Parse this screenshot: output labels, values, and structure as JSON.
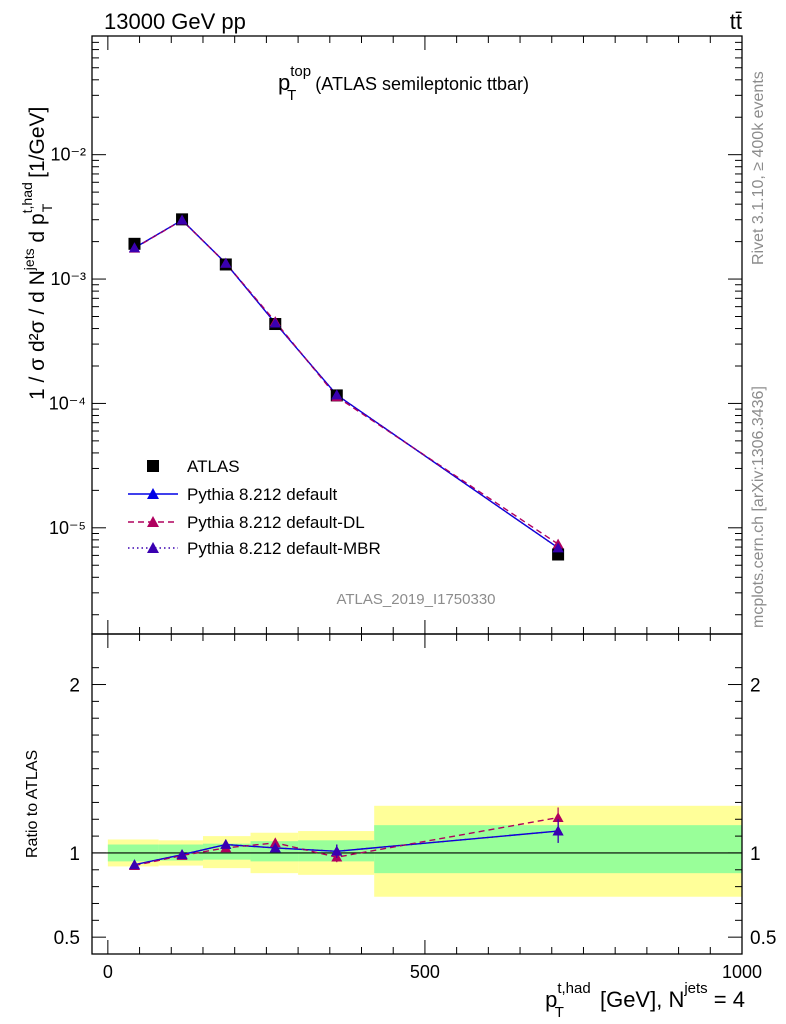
{
  "header": {
    "energy_label": "13000 GeV pp",
    "process_label": "tt̄"
  },
  "side_text": {
    "rivet_label": "Rivet 3.1.10, ≥ 400k events",
    "mcplots_label": "mcplots.cern.ch [arXiv:1306.3436]"
  },
  "plot": {
    "title_main": "p",
    "title_sup": "top",
    "title_sub": "T",
    "title_rest": " (ATLAS semileptonic ttbar)",
    "analysis_id": "ATLAS_2019_I1750330",
    "ylabel_main": "1 / σ d²σ / d N",
    "ylabel_sup1": "jets",
    "ylabel_mid": " d p",
    "ylabel_sup2": "t,had",
    "ylabel_sub2": "T",
    "ylabel_unit": " [1/GeV]",
    "ratio_ylabel": "Ratio to ATLAS",
    "xlabel_main": "p",
    "xlabel_sup": "t,had",
    "xlabel_sub": "T",
    "xlabel_rest": " [GeV], N",
    "xlabel_sup2": "jets",
    "xlabel_end": " = 4"
  },
  "legend": {
    "data_label": "ATLAS",
    "default_label": "Pythia 8.212 default",
    "dl_label": "Pythia 8.212 default-DL",
    "mbr_label": "Pythia 8.212 default-MBR"
  },
  "colors": {
    "data": "#000000",
    "default": "#0000e6",
    "dl": "#b0005f",
    "mbr": "#3a00b0",
    "band_inner": "#99ff99",
    "band_outer": "#ffff99"
  },
  "chart_data": {
    "type": "line",
    "title": "pT top (ATLAS semileptonic ttbar)",
    "xlabel": "pT t,had [GeV], N jets = 4",
    "ylabel": "1 / sigma d2sigma / d N jets d pT t,had [1/GeV]",
    "xlim": [
      -25,
      1000
    ],
    "ylim": [
      1.4e-06,
      0.09
    ],
    "yscale": "log",
    "x_ticks": [
      0,
      500,
      1000
    ],
    "x_tick_labels": [
      "0",
      "500",
      "1000"
    ],
    "y_ticks": [
      1e-05,
      0.0001,
      0.001,
      0.01
    ],
    "y_tick_labels": [
      "10⁻⁵",
      "10⁻⁴",
      "10⁻³",
      "10⁻²"
    ],
    "bins": [
      [
        0,
        80
      ],
      [
        80,
        150
      ],
      [
        150,
        225
      ],
      [
        225,
        300
      ],
      [
        300,
        420
      ],
      [
        420,
        1000
      ]
    ],
    "x": [
      42,
      117,
      186,
      264,
      361,
      710
    ],
    "series": [
      {
        "name": "ATLAS",
        "values": [
          0.00192,
          0.00302,
          0.00131,
          0.000435,
          0.000116,
          6.1e-06
        ]
      },
      {
        "name": "Pythia 8.212 default",
        "values": [
          0.00178,
          0.00298,
          0.00134,
          0.000442,
          0.000117,
          6.9e-06
        ]
      },
      {
        "name": "Pythia 8.212 default-DL",
        "values": [
          0.00177,
          0.00297,
          0.00134,
          0.000455,
          0.000113,
          7.4e-06
        ]
      },
      {
        "name": "Pythia 8.212 default-MBR",
        "values": [
          0.00178,
          0.00298,
          0.00134,
          0.000442,
          0.000117,
          6.9e-06
        ]
      }
    ],
    "ratio": {
      "ylabel": "Ratio to ATLAS",
      "ylim": [
        0.4,
        2.3
      ],
      "y_ticks": [
        0.5,
        1,
        2
      ],
      "y_tick_labels": [
        "0.5",
        "1",
        "2"
      ],
      "band_inner": [
        0.95,
        0.955,
        0.96,
        0.95,
        0.95,
        0.88
      ],
      "band_inner_hi": [
        1.05,
        1.05,
        1.055,
        1.07,
        1.075,
        1.165
      ],
      "band_outer": [
        0.92,
        0.925,
        0.91,
        0.88,
        0.87,
        0.74
      ],
      "band_outer_hi": [
        1.08,
        1.075,
        1.1,
        1.12,
        1.13,
        1.28
      ],
      "default": [
        0.93,
        0.99,
        1.05,
        1.03,
        1.01,
        1.13
      ],
      "default_err": [
        0.01,
        0.01,
        0.01,
        0.015,
        0.04,
        0.07
      ],
      "dl": [
        0.925,
        0.985,
        1.03,
        1.06,
        0.975,
        1.21
      ],
      "dl_err": [
        0.01,
        0.01,
        0.01,
        0.015,
        0.03,
        0.06
      ],
      "mbr": [
        0.93,
        0.99,
        1.05,
        1.03,
        1.01,
        1.13
      ],
      "mbr_err": [
        0.01,
        0.01,
        0.01,
        0.015,
        0.04,
        0.07
      ]
    }
  }
}
